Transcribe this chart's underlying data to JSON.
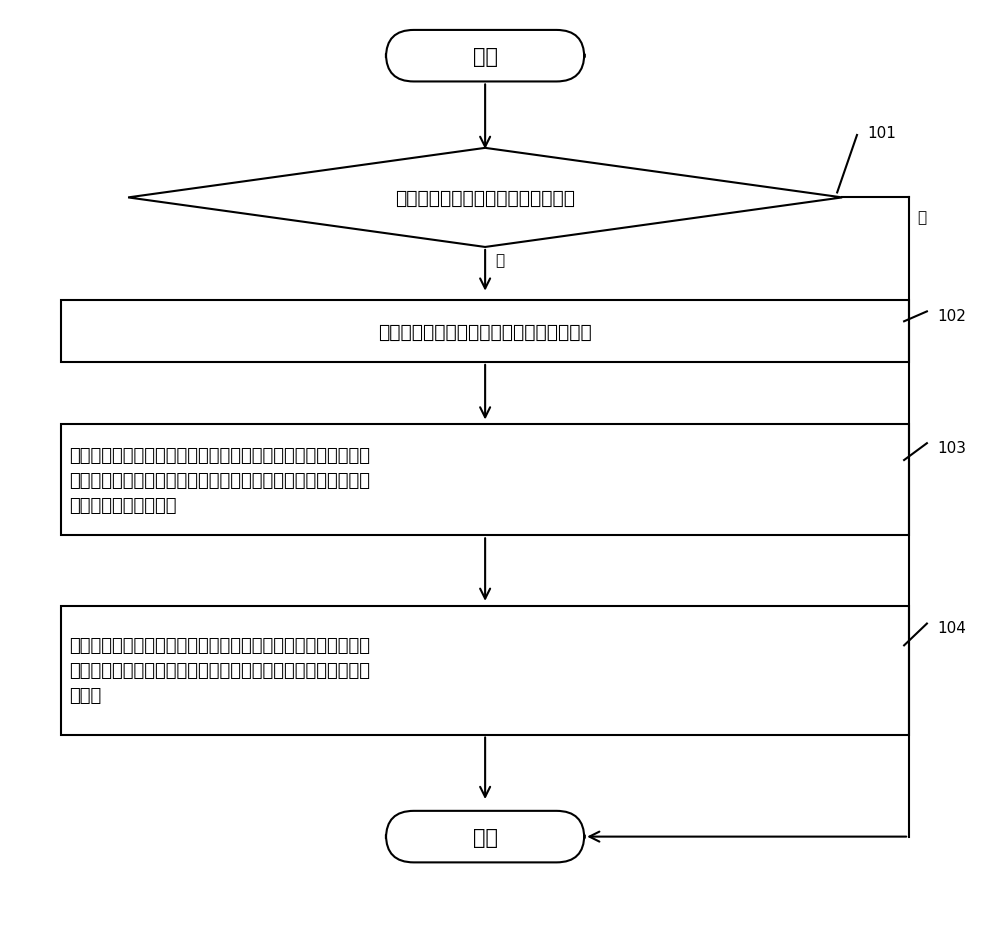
{
  "bg_color": "#ffffff",
  "line_color": "#000000",
  "text_color": "#000000",
  "font_size_main": 15,
  "font_size_label": 11,
  "font_size_box": 13,
  "start_end_text": [
    "开始",
    "结束"
  ],
  "diamond_text": "终端设备检测用户是否处于驾驶状态",
  "diamond_label": "101",
  "yes_label": "是",
  "no_label": "否",
  "box102_text": "终端设备启动终端设备的身体疲劳检测功能",
  "box102_label": "102",
  "box103_text": "在上述身体疲劳检测功能下，终端设备通过终端设备上的心率传\n感器监测用户的身体心率值，并根据监测到的身体心率值确定用\n户的当前心率波动规律",
  "box103_label": "103",
  "box104_text": "当上述当前心率波动规律与预设心率波动规律相匹配时，终端设\n备确定用户处于疲劳驾驶状态，并输出针对该疲劳驾驶状态的预\n警消息",
  "box104_label": "104"
}
